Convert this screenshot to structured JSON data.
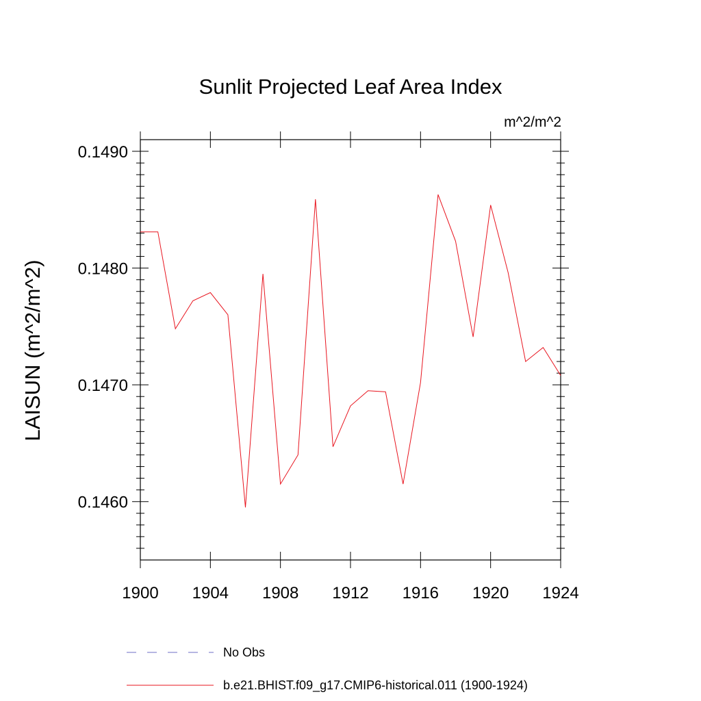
{
  "chart_data": {
    "type": "line",
    "title": "Sunlit Projected Leaf Area Index",
    "units": "m^2/m^2",
    "ylabel": "LAISUN  (m^2/m^2)",
    "xlabel": "",
    "xlim": [
      1900,
      1924
    ],
    "ylim": [
      0.1455,
      0.1491
    ],
    "x_ticks": [
      1900,
      1904,
      1908,
      1912,
      1916,
      1920,
      1924
    ],
    "x_tick_labels": [
      "1900",
      "1904",
      "1908",
      "1912",
      "1916",
      "1920",
      "1924"
    ],
    "y_ticks": [
      0.146,
      0.147,
      0.148,
      0.149
    ],
    "y_tick_labels": [
      "0.1460",
      "0.1470",
      "0.1480",
      "0.1490"
    ],
    "grid": false,
    "legend_position": "bottom",
    "series": [
      {
        "name": "b.e21.BHIST.f09_g17.CMIP6-historical.011 (1900-1924)",
        "color": "#e8141e",
        "style": "solid",
        "x": [
          1900,
          1901,
          1902,
          1903,
          1904,
          1905,
          1906,
          1907,
          1908,
          1909,
          1910,
          1911,
          1912,
          1913,
          1914,
          1915,
          1916,
          1917,
          1918,
          1919,
          1920,
          1921,
          1922,
          1923,
          1924
        ],
        "y": [
          0.14831,
          0.14831,
          0.14748,
          0.14772,
          0.14779,
          0.1476,
          0.14595,
          0.14795,
          0.14615,
          0.1464,
          0.14859,
          0.14647,
          0.14682,
          0.14695,
          0.14694,
          0.14615,
          0.14702,
          0.14863,
          0.14823,
          0.14741,
          0.14854,
          0.14796,
          0.1472,
          0.14732,
          0.14708
        ]
      }
    ],
    "legend": [
      {
        "label": "No Obs",
        "color": "#6d6dc4",
        "style": "dashed"
      },
      {
        "label": "b.e21.BHIST.f09_g17.CMIP6-historical.011 (1900-1924)",
        "color": "#e8141e",
        "style": "solid"
      }
    ]
  }
}
